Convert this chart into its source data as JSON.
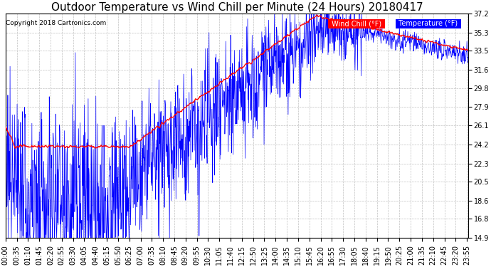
{
  "title": "Outdoor Temperature vs Wind Chill per Minute (24 Hours) 20180417",
  "copyright_text": "Copyright 2018 Cartronics.com",
  "ylim": [
    14.9,
    37.2
  ],
  "yticks": [
    14.9,
    16.8,
    18.6,
    20.5,
    22.3,
    24.2,
    26.1,
    27.9,
    29.8,
    31.6,
    33.5,
    35.3,
    37.2
  ],
  "bg_color": "#ffffff",
  "grid_color": "#c0c0c0",
  "temp_color": "#ff0000",
  "wind_chill_color": "#0000ff",
  "title_fontsize": 11,
  "tick_fontsize": 7,
  "xtick_step": 35
}
